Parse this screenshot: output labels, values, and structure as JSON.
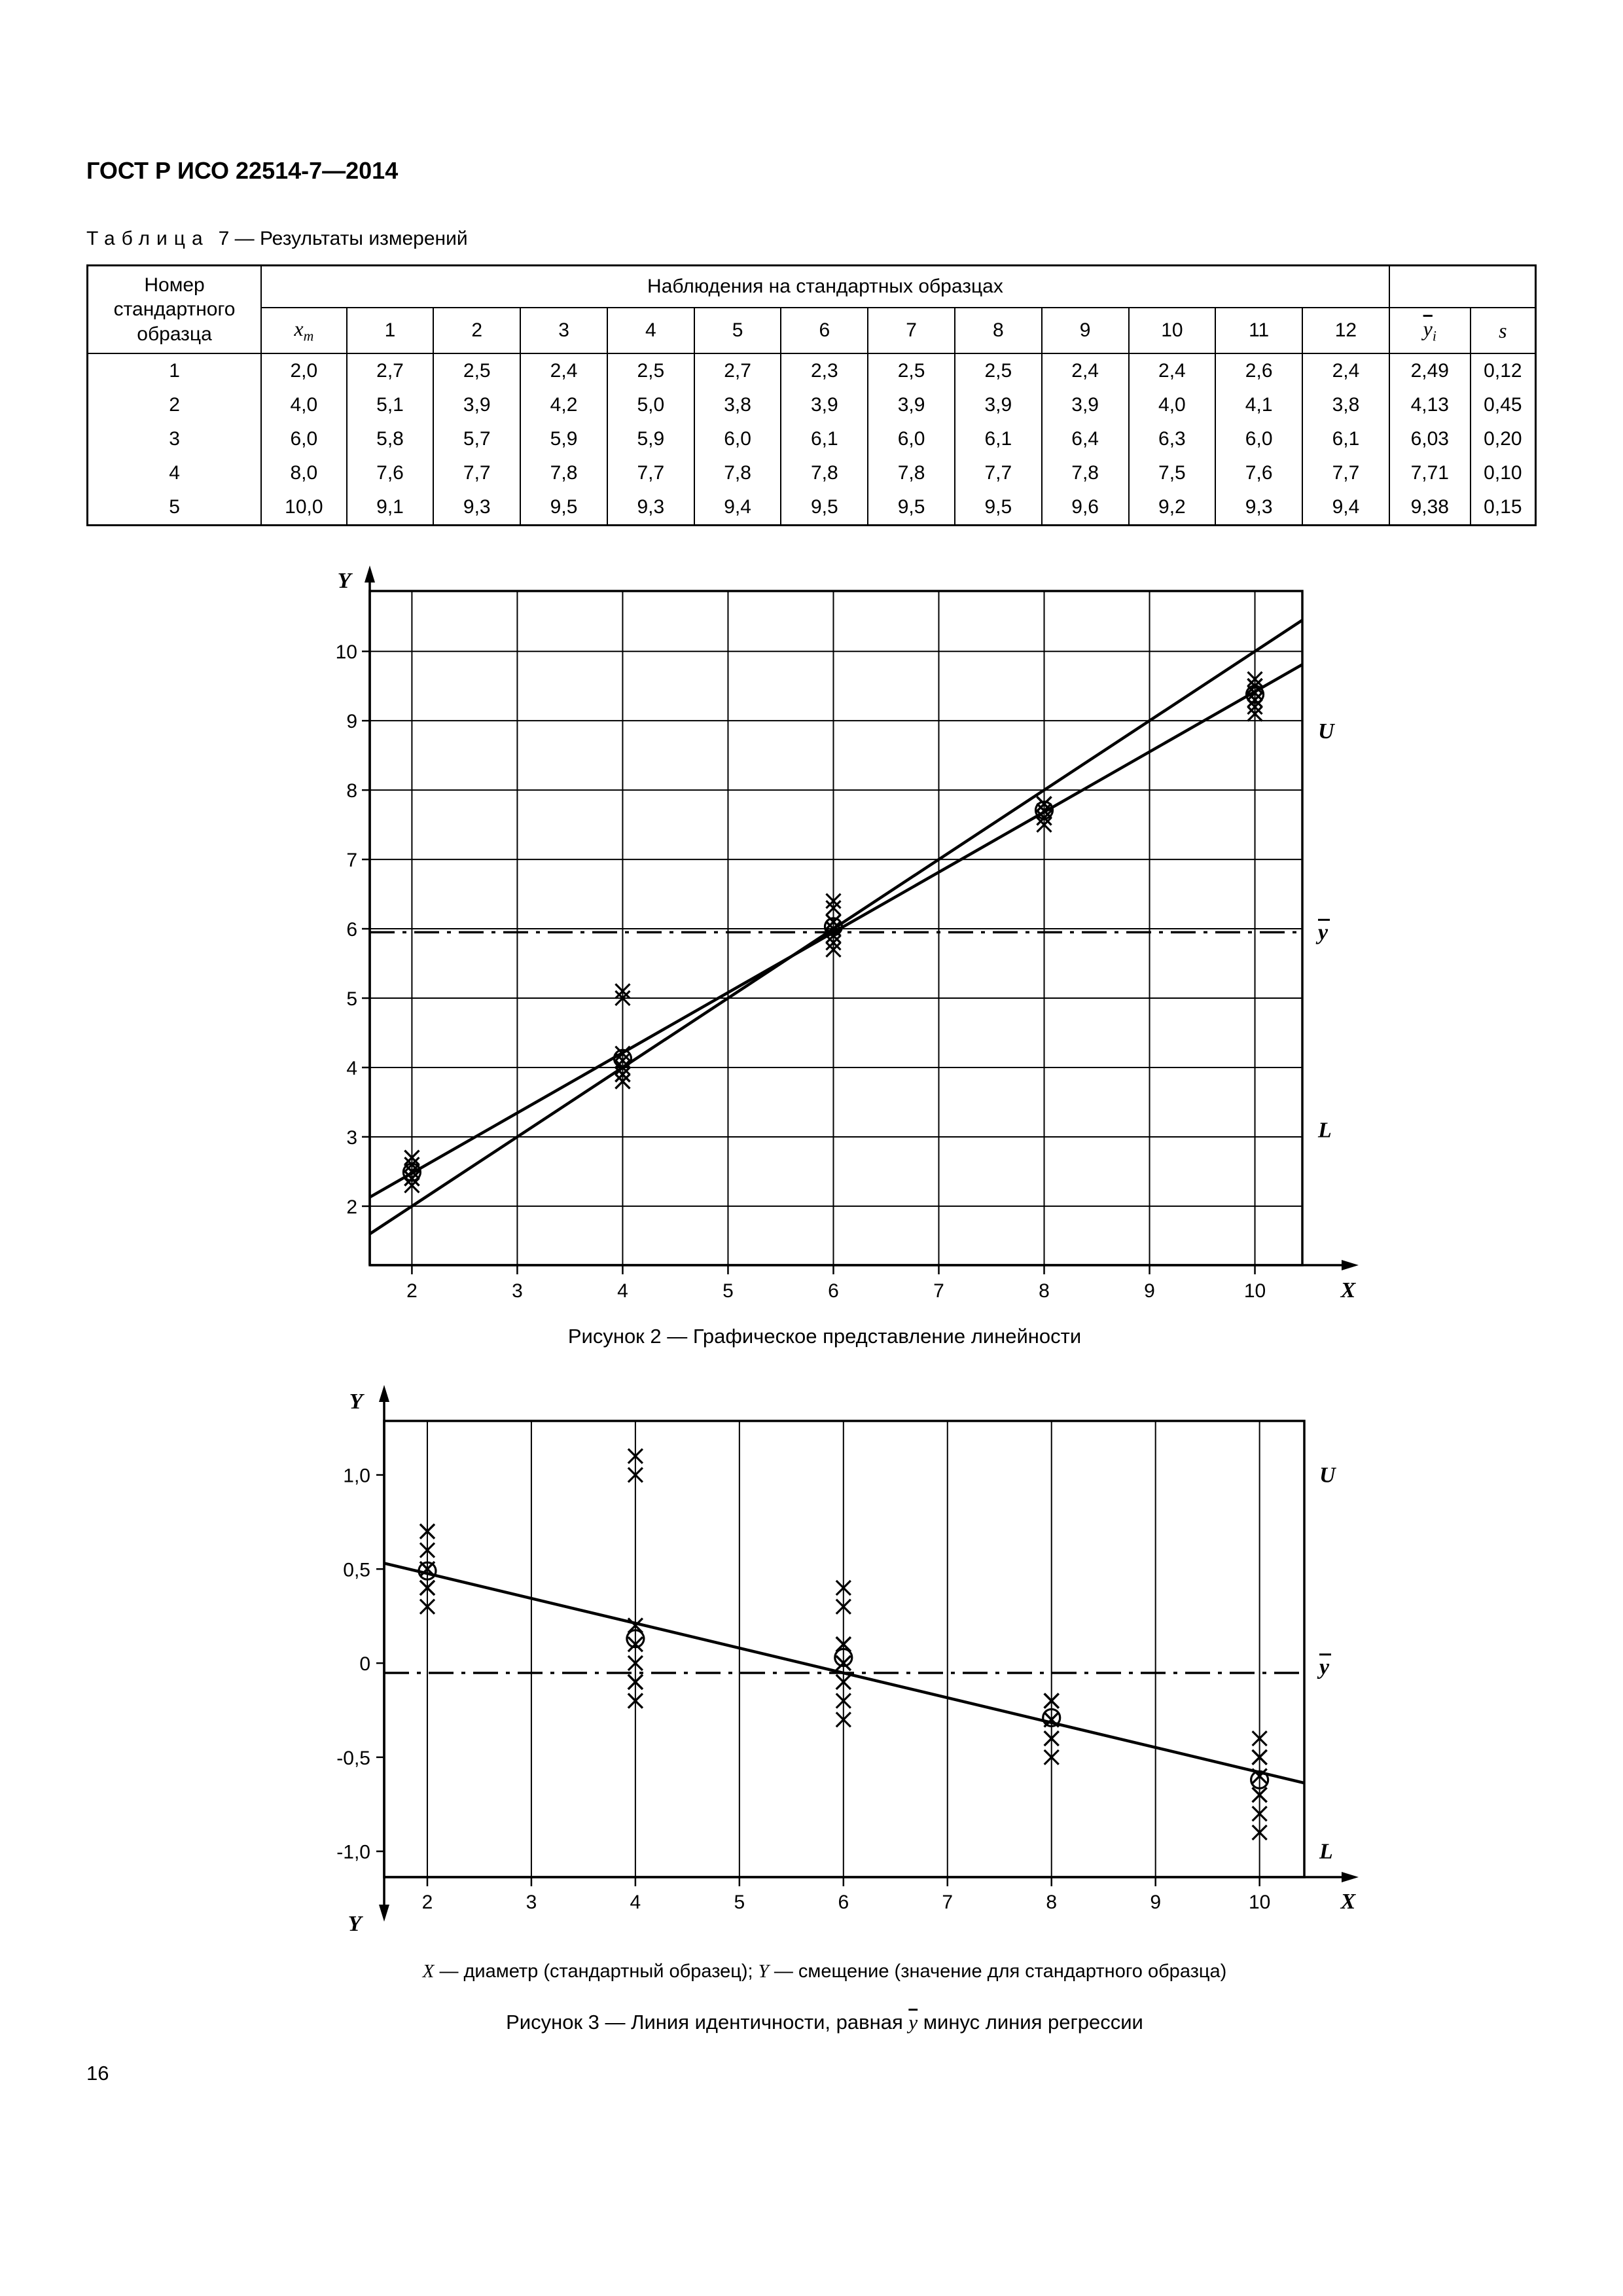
{
  "header": {
    "title": "ГОСТ Р ИСО 22514-7—2014"
  },
  "page": {
    "number": "16"
  },
  "table7": {
    "title_word": "Таблица",
    "title_rest": "7 — Результаты измерений",
    "col1_header": "Номер стандартного образца",
    "obs_header": "Наблюдения на стандартных образцах",
    "xm": {
      "base": "x",
      "sub": "m"
    },
    "obs_cols": [
      "1",
      "2",
      "3",
      "4",
      "5",
      "6",
      "7",
      "8",
      "9",
      "10",
      "11",
      "12"
    ],
    "ybar": {
      "base": "y",
      "sub": "i"
    },
    "s_header": "s",
    "rows": [
      [
        "1",
        "2,0",
        "2,7",
        "2,5",
        "2,4",
        "2,5",
        "2,7",
        "2,3",
        "2,5",
        "2,5",
        "2,4",
        "2,4",
        "2,6",
        "2,4",
        "2,49",
        "0,12"
      ],
      [
        "2",
        "4,0",
        "5,1",
        "3,9",
        "4,2",
        "5,0",
        "3,8",
        "3,9",
        "3,9",
        "3,9",
        "3,9",
        "4,0",
        "4,1",
        "3,8",
        "4,13",
        "0,45"
      ],
      [
        "3",
        "6,0",
        "5,8",
        "5,7",
        "5,9",
        "5,9",
        "6,0",
        "6,1",
        "6,0",
        "6,1",
        "6,4",
        "6,3",
        "6,0",
        "6,1",
        "6,03",
        "0,20"
      ],
      [
        "4",
        "8,0",
        "7,6",
        "7,7",
        "7,8",
        "7,7",
        "7,8",
        "7,8",
        "7,8",
        "7,7",
        "7,8",
        "7,5",
        "7,6",
        "7,7",
        "7,71",
        "0,10"
      ],
      [
        "5",
        "10,0",
        "9,1",
        "9,3",
        "9,5",
        "9,3",
        "9,4",
        "9,5",
        "9,5",
        "9,5",
        "9,6",
        "9,2",
        "9,3",
        "9,4",
        "9,38",
        "0,15"
      ]
    ]
  },
  "figure2": {
    "caption": "Рисунок  2 — Графическое представление линейности"
  },
  "figure3": {
    "legend_x_sym": "X",
    "legend_x_text": " — диаметр (стандартный образец); ",
    "legend_y_sym": "Y",
    "legend_y_text": " — смещение (значение для стандартного образца)",
    "caption_pre": "Рисунок  3 — Линия идентичности, равная ",
    "caption_ybar": "y",
    "caption_post": " минус линия регрессии"
  },
  "chart_data": [
    {
      "id": "figure2",
      "type": "scatter",
      "title": "Рисунок 2 — Графическое представление линейности",
      "xlabel": "X",
      "ylabel": "Y",
      "xlim": [
        1.6,
        10.45
      ],
      "ylim": [
        1.15,
        10.87
      ],
      "x_ticks": [
        2,
        3,
        4,
        5,
        6,
        7,
        8,
        9,
        10
      ],
      "y_ticks": [
        2,
        3,
        4,
        5,
        6,
        7,
        8,
        9,
        10
      ],
      "grid": "both",
      "groups": [
        {
          "x": 2,
          "observations": [
            2.7,
            2.5,
            2.4,
            2.5,
            2.7,
            2.3,
            2.5,
            2.5,
            2.4,
            2.4,
            2.6,
            2.4
          ],
          "mean": 2.49
        },
        {
          "x": 4,
          "observations": [
            5.1,
            3.9,
            4.2,
            5.0,
            3.8,
            3.9,
            3.9,
            3.9,
            3.9,
            4.0,
            4.1,
            3.8
          ],
          "mean": 4.13
        },
        {
          "x": 6,
          "observations": [
            5.8,
            5.7,
            5.9,
            5.9,
            6.0,
            6.1,
            6.0,
            6.1,
            6.4,
            6.3,
            6.0,
            6.1
          ],
          "mean": 6.03
        },
        {
          "x": 8,
          "observations": [
            7.6,
            7.7,
            7.8,
            7.7,
            7.8,
            7.8,
            7.8,
            7.7,
            7.8,
            7.5,
            7.6,
            7.7
          ],
          "mean": 7.71
        },
        {
          "x": 10,
          "observations": [
            9.1,
            9.3,
            9.5,
            9.3,
            9.4,
            9.5,
            9.5,
            9.5,
            9.6,
            9.2,
            9.3,
            9.4
          ],
          "mean": 9.38
        }
      ],
      "lines": [
        {
          "name": "identity-line",
          "x1": 1.6,
          "y1": 1.6,
          "x2": 10.45,
          "y2": 10.45,
          "style": "solid"
        },
        {
          "name": "regression-line",
          "x1": 1.6,
          "y1": 2.13,
          "x2": 10.45,
          "y2": 9.81,
          "style": "solid"
        },
        {
          "name": "ybar-line",
          "x1": 1.6,
          "y1": 5.95,
          "x2": 10.45,
          "y2": 5.95,
          "style": "dashdot"
        }
      ],
      "right_labels": [
        {
          "name": "u",
          "base": "U",
          "overline": false,
          "y": 8.85
        },
        {
          "name": "ybar",
          "base": "y",
          "overline": true,
          "y": 5.95
        },
        {
          "name": "l",
          "base": "L",
          "overline": false,
          "y": 3.1
        }
      ]
    },
    {
      "id": "figure3",
      "type": "scatter",
      "title": "Рисунок 3 — Линия идентичности, равная ȳ минус линия регрессии",
      "xlabel": "X",
      "ylabel": "Y",
      "xlim": [
        1.585,
        10.43
      ],
      "ylim": [
        -1.137,
        1.287
      ],
      "x_ticks": [
        2,
        3,
        4,
        5,
        6,
        7,
        8,
        9,
        10
      ],
      "y_ticks": [
        1.0,
        0.5,
        0,
        -0.5,
        -1.0
      ],
      "y_tick_labels": [
        "1,0",
        "0,5",
        "0",
        "-0,5",
        "-1,0"
      ],
      "grid": "vertical",
      "groups": [
        {
          "x": 2,
          "observations": [
            0.7,
            0.5,
            0.4,
            0.5,
            0.7,
            0.3,
            0.5,
            0.5,
            0.4,
            0.4,
            0.6,
            0.4
          ],
          "mean": 0.49
        },
        {
          "x": 4,
          "observations": [
            1.1,
            -0.1,
            0.2,
            1.0,
            -0.2,
            -0.1,
            -0.1,
            -0.1,
            -0.1,
            0.0,
            0.1,
            -0.2
          ],
          "mean": 0.13
        },
        {
          "x": 6,
          "observations": [
            -0.2,
            -0.3,
            -0.1,
            -0.1,
            0.0,
            0.1,
            0.0,
            0.1,
            0.4,
            0.3,
            0.0,
            0.1
          ],
          "mean": 0.03
        },
        {
          "x": 8,
          "observations": [
            -0.4,
            -0.3,
            -0.2,
            -0.3,
            -0.2,
            -0.2,
            -0.2,
            -0.3,
            -0.2,
            -0.5,
            -0.4,
            -0.3
          ],
          "mean": -0.29
        },
        {
          "x": 10,
          "observations": [
            -0.9,
            -0.7,
            -0.5,
            -0.7,
            -0.6,
            -0.5,
            -0.5,
            -0.5,
            -0.4,
            -0.8,
            -0.7,
            -0.6
          ],
          "mean": -0.62
        }
      ],
      "lines": [
        {
          "name": "bias-line",
          "x1": 1.585,
          "y1": 0.531,
          "x2": 10.43,
          "y2": -0.637,
          "style": "solid"
        },
        {
          "name": "ybar-line",
          "x1": 1.585,
          "y1": -0.052,
          "x2": 10.43,
          "y2": -0.052,
          "style": "dashdot"
        }
      ],
      "right_labels": [
        {
          "name": "u",
          "base": "U",
          "overline": false,
          "y": 1.0
        },
        {
          "name": "ybar",
          "base": "y",
          "overline": true,
          "y": -0.02
        },
        {
          "name": "l",
          "base": "L",
          "overline": false,
          "y": -1.0
        }
      ]
    }
  ]
}
